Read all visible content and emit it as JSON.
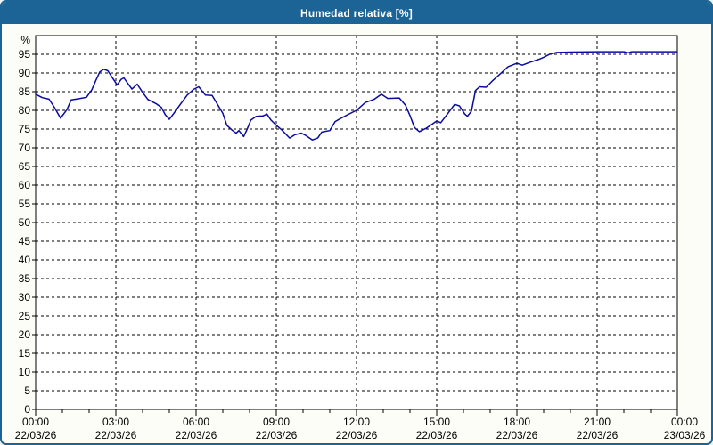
{
  "window": {
    "title": "Humedad relativa [%]",
    "title_bar_color": "#1c6396",
    "border_color": "#1c6396",
    "background_color": "#fdfdf8",
    "plot_background_color": "#ffffff"
  },
  "chart_data": {
    "type": "line",
    "title": "Humedad relativa [%]",
    "ylabel_unit": "%",
    "ylim": [
      0,
      100
    ],
    "xlim_hours": [
      0,
      24
    ],
    "grid": "dashed",
    "legend": "none",
    "line_color": "#0a0aa0",
    "grid_color": "#000000",
    "y_ticks": [
      0,
      5,
      10,
      15,
      20,
      25,
      30,
      35,
      40,
      45,
      50,
      55,
      60,
      65,
      70,
      75,
      80,
      85,
      90,
      95
    ],
    "x_major_ticks": [
      {
        "hour": 0,
        "time": "00:00",
        "date": "22/03/26"
      },
      {
        "hour": 3,
        "time": "03:00",
        "date": "22/03/26"
      },
      {
        "hour": 6,
        "time": "06:00",
        "date": "22/03/26"
      },
      {
        "hour": 9,
        "time": "09:00",
        "date": "22/03/26"
      },
      {
        "hour": 12,
        "time": "12:00",
        "date": "22/03/26"
      },
      {
        "hour": 15,
        "time": "15:00",
        "date": "22/03/26"
      },
      {
        "hour": 18,
        "time": "18:00",
        "date": "22/03/26"
      },
      {
        "hour": 21,
        "time": "21:00",
        "date": "22/03/26"
      },
      {
        "hour": 24,
        "time": "00:00",
        "date": "23/03/26"
      }
    ],
    "x_minor_tick_every_hours": 1,
    "series": [
      {
        "name": "Humedad relativa",
        "points": [
          [
            0,
            84.3
          ],
          [
            0.25,
            83.4
          ],
          [
            0.5,
            83.0
          ],
          [
            0.7,
            80.8
          ],
          [
            0.93,
            77.9
          ],
          [
            1.17,
            80.2
          ],
          [
            1.33,
            82.8
          ],
          [
            1.6,
            83.1
          ],
          [
            1.9,
            83.5
          ],
          [
            2.1,
            85.5
          ],
          [
            2.25,
            88.0
          ],
          [
            2.4,
            90.3
          ],
          [
            2.55,
            91.0
          ],
          [
            2.7,
            90.6
          ],
          [
            2.9,
            88.4
          ],
          [
            3.05,
            86.8
          ],
          [
            3.2,
            88.3
          ],
          [
            3.3,
            88.7
          ],
          [
            3.45,
            87.2
          ],
          [
            3.6,
            85.7
          ],
          [
            3.8,
            87.0
          ],
          [
            4.0,
            84.8
          ],
          [
            4.2,
            82.9
          ],
          [
            4.5,
            81.8
          ],
          [
            4.7,
            80.8
          ],
          [
            4.85,
            78.8
          ],
          [
            5.0,
            77.6
          ],
          [
            5.2,
            79.5
          ],
          [
            5.4,
            81.5
          ],
          [
            5.67,
            84.1
          ],
          [
            5.9,
            85.6
          ],
          [
            6.1,
            86.3
          ],
          [
            6.35,
            84.1
          ],
          [
            6.6,
            84.0
          ],
          [
            6.8,
            81.6
          ],
          [
            7.0,
            79.2
          ],
          [
            7.15,
            76.0
          ],
          [
            7.35,
            74.7
          ],
          [
            7.5,
            73.9
          ],
          [
            7.6,
            74.6
          ],
          [
            7.78,
            73.0
          ],
          [
            7.9,
            74.8
          ],
          [
            8.05,
            77.4
          ],
          [
            8.25,
            78.4
          ],
          [
            8.5,
            78.5
          ],
          [
            8.65,
            79.0
          ],
          [
            8.8,
            77.4
          ],
          [
            9.0,
            76.0
          ],
          [
            9.2,
            74.8
          ],
          [
            9.5,
            72.6
          ],
          [
            9.7,
            73.5
          ],
          [
            9.93,
            73.9
          ],
          [
            10.1,
            73.3
          ],
          [
            10.35,
            72.1
          ],
          [
            10.55,
            72.6
          ],
          [
            10.7,
            74.2
          ],
          [
            11.0,
            74.6
          ],
          [
            11.2,
            77.0
          ],
          [
            11.5,
            78.2
          ],
          [
            11.83,
            79.4
          ],
          [
            12.0,
            80.0
          ],
          [
            12.33,
            82.1
          ],
          [
            12.67,
            83.0
          ],
          [
            12.93,
            84.3
          ],
          [
            13.17,
            83.2
          ],
          [
            13.6,
            83.3
          ],
          [
            13.83,
            81.4
          ],
          [
            14.0,
            78.6
          ],
          [
            14.17,
            75.4
          ],
          [
            14.35,
            74.3
          ],
          [
            14.6,
            75.2
          ],
          [
            14.85,
            76.4
          ],
          [
            15.0,
            77.2
          ],
          [
            15.15,
            76.7
          ],
          [
            15.4,
            79.0
          ],
          [
            15.67,
            81.6
          ],
          [
            15.85,
            81.2
          ],
          [
            16.05,
            79.0
          ],
          [
            16.15,
            78.4
          ],
          [
            16.3,
            79.8
          ],
          [
            16.45,
            85.3
          ],
          [
            16.6,
            86.3
          ],
          [
            16.85,
            86.2
          ],
          [
            17.1,
            88.0
          ],
          [
            17.35,
            89.6
          ],
          [
            17.67,
            91.7
          ],
          [
            18.0,
            92.6
          ],
          [
            18.2,
            92.1
          ],
          [
            18.5,
            92.9
          ],
          [
            18.8,
            93.6
          ],
          [
            19.0,
            94.2
          ],
          [
            19.25,
            95.1
          ],
          [
            19.5,
            95.5
          ],
          [
            20.0,
            95.6
          ],
          [
            21.0,
            95.7
          ],
          [
            22.0,
            95.7
          ],
          [
            22.15,
            95.4
          ],
          [
            22.3,
            95.7
          ],
          [
            23.0,
            95.7
          ],
          [
            24.0,
            95.7
          ]
        ]
      }
    ]
  }
}
